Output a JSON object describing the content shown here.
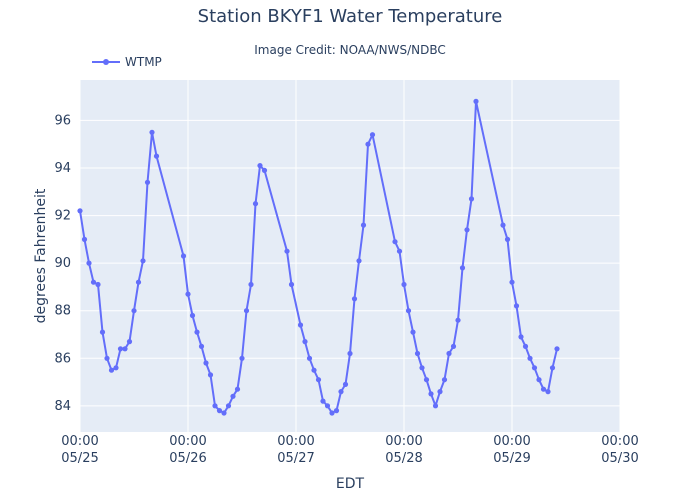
{
  "chart_data": {
    "type": "line",
    "title": "Station BKYF1 Water Temperature",
    "subtitle": "Image Credit: NOAA/NWS/NDBC",
    "xlabel": "EDT",
    "ylabel": "degrees Fahrenheit",
    "xlim": [
      "2024-05-25T00:00",
      "2024-05-30T00:00"
    ],
    "ylim": [
      82.9,
      97.7
    ],
    "xticks": [
      {
        "time": "2024-05-25T00:00",
        "line1": "00:00",
        "line2": "05/25"
      },
      {
        "time": "2024-05-26T00:00",
        "line1": "00:00",
        "line2": "05/26"
      },
      {
        "time": "2024-05-27T00:00",
        "line1": "00:00",
        "line2": "05/27"
      },
      {
        "time": "2024-05-28T00:00",
        "line1": "00:00",
        "line2": "05/28"
      },
      {
        "time": "2024-05-29T00:00",
        "line1": "00:00",
        "line2": "05/29"
      },
      {
        "time": "2024-05-30T00:00",
        "line1": "00:00",
        "line2": "05/30"
      }
    ],
    "yticks": [
      84,
      86,
      88,
      90,
      92,
      94,
      96
    ],
    "grid": true,
    "legend_position": "top-left",
    "colors": {
      "background": "#e5ecf6",
      "grid": "#ffffff",
      "series": "#636efa",
      "text": "#2a3f5f"
    },
    "series": [
      {
        "name": "WTMP",
        "points": [
          [
            "2024-05-25T00:00",
            92.2
          ],
          [
            "2024-05-25T01:00",
            91.0
          ],
          [
            "2024-05-25T02:00",
            90.0
          ],
          [
            "2024-05-25T03:00",
            89.2
          ],
          [
            "2024-05-25T04:00",
            89.1
          ],
          [
            "2024-05-25T05:00",
            87.1
          ],
          [
            "2024-05-25T06:00",
            86.0
          ],
          [
            "2024-05-25T07:00",
            85.5
          ],
          [
            "2024-05-25T08:00",
            85.6
          ],
          [
            "2024-05-25T09:00",
            86.4
          ],
          [
            "2024-05-25T10:00",
            86.4
          ],
          [
            "2024-05-25T11:00",
            86.7
          ],
          [
            "2024-05-25T12:00",
            88.0
          ],
          [
            "2024-05-25T13:00",
            89.2
          ],
          [
            "2024-05-25T14:00",
            90.1
          ],
          [
            "2024-05-25T15:00",
            93.4
          ],
          [
            "2024-05-25T16:00",
            95.5
          ],
          [
            "2024-05-25T17:00",
            94.5
          ],
          [
            "2024-05-25T23:00",
            90.3
          ],
          [
            "2024-05-26T00:00",
            88.7
          ],
          [
            "2024-05-26T01:00",
            87.8
          ],
          [
            "2024-05-26T02:00",
            87.1
          ],
          [
            "2024-05-26T03:00",
            86.5
          ],
          [
            "2024-05-26T04:00",
            85.8
          ],
          [
            "2024-05-26T05:00",
            85.3
          ],
          [
            "2024-05-26T06:00",
            84.0
          ],
          [
            "2024-05-26T07:00",
            83.8
          ],
          [
            "2024-05-26T08:00",
            83.7
          ],
          [
            "2024-05-26T09:00",
            84.0
          ],
          [
            "2024-05-26T10:00",
            84.4
          ],
          [
            "2024-05-26T11:00",
            84.7
          ],
          [
            "2024-05-26T12:00",
            86.0
          ],
          [
            "2024-05-26T13:00",
            88.0
          ],
          [
            "2024-05-26T14:00",
            89.1
          ],
          [
            "2024-05-26T15:00",
            92.5
          ],
          [
            "2024-05-26T16:00",
            94.1
          ],
          [
            "2024-05-26T17:00",
            93.9
          ],
          [
            "2024-05-26T22:00",
            90.5
          ],
          [
            "2024-05-26T23:00",
            89.1
          ],
          [
            "2024-05-27T01:00",
            87.4
          ],
          [
            "2024-05-27T02:00",
            86.7
          ],
          [
            "2024-05-27T03:00",
            86.0
          ],
          [
            "2024-05-27T04:00",
            85.5
          ],
          [
            "2024-05-27T05:00",
            85.1
          ],
          [
            "2024-05-27T06:00",
            84.2
          ],
          [
            "2024-05-27T07:00",
            84.0
          ],
          [
            "2024-05-27T08:00",
            83.7
          ],
          [
            "2024-05-27T09:00",
            83.8
          ],
          [
            "2024-05-27T10:00",
            84.6
          ],
          [
            "2024-05-27T11:00",
            84.9
          ],
          [
            "2024-05-27T12:00",
            86.2
          ],
          [
            "2024-05-27T13:00",
            88.5
          ],
          [
            "2024-05-27T14:00",
            90.1
          ],
          [
            "2024-05-27T15:00",
            91.6
          ],
          [
            "2024-05-27T16:00",
            95.0
          ],
          [
            "2024-05-27T17:00",
            95.4
          ],
          [
            "2024-05-27T22:00",
            90.9
          ],
          [
            "2024-05-27T23:00",
            90.5
          ],
          [
            "2024-05-28T00:00",
            89.1
          ],
          [
            "2024-05-28T01:00",
            88.0
          ],
          [
            "2024-05-28T02:00",
            87.1
          ],
          [
            "2024-05-28T03:00",
            86.2
          ],
          [
            "2024-05-28T04:00",
            85.6
          ],
          [
            "2024-05-28T05:00",
            85.1
          ],
          [
            "2024-05-28T06:00",
            84.5
          ],
          [
            "2024-05-28T07:00",
            84.0
          ],
          [
            "2024-05-28T08:00",
            84.6
          ],
          [
            "2024-05-28T09:00",
            85.1
          ],
          [
            "2024-05-28T10:00",
            86.2
          ],
          [
            "2024-05-28T11:00",
            86.5
          ],
          [
            "2024-05-28T12:00",
            87.6
          ],
          [
            "2024-05-28T13:00",
            89.8
          ],
          [
            "2024-05-28T14:00",
            91.4
          ],
          [
            "2024-05-28T15:00",
            92.7
          ],
          [
            "2024-05-28T16:00",
            96.8
          ],
          [
            "2024-05-28T22:00",
            91.6
          ],
          [
            "2024-05-28T23:00",
            91.0
          ],
          [
            "2024-05-29T00:00",
            89.2
          ],
          [
            "2024-05-29T01:00",
            88.2
          ],
          [
            "2024-05-29T02:00",
            86.9
          ],
          [
            "2024-05-29T03:00",
            86.5
          ],
          [
            "2024-05-29T04:00",
            86.0
          ],
          [
            "2024-05-29T05:00",
            85.6
          ],
          [
            "2024-05-29T06:00",
            85.1
          ],
          [
            "2024-05-29T07:00",
            84.7
          ],
          [
            "2024-05-29T08:00",
            84.6
          ],
          [
            "2024-05-29T09:00",
            85.6
          ],
          [
            "2024-05-29T10:00",
            86.4
          ]
        ]
      }
    ]
  }
}
